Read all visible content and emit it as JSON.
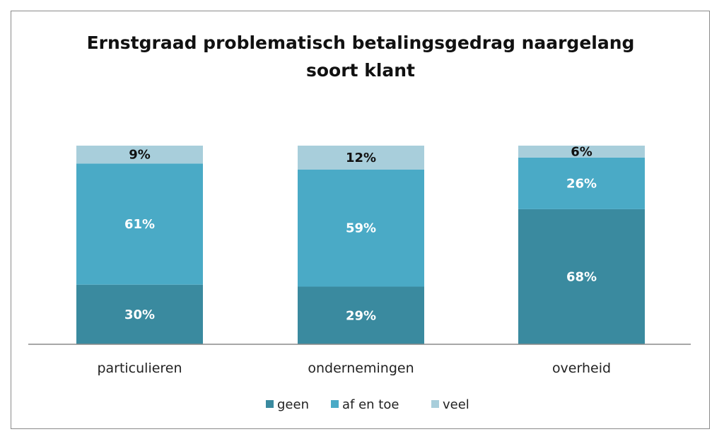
{
  "chart_data": {
    "type": "bar",
    "stacked": true,
    "title_lines": [
      "Ernstgraad problematisch betalingsgedrag naargelang",
      "soort klant"
    ],
    "categories": [
      "particulieren",
      "ondernemingen",
      "overheid"
    ],
    "series": [
      {
        "name": "geen",
        "values": [
          30,
          29,
          68
        ],
        "labels": [
          "30%",
          "29%",
          "68%"
        ],
        "color": "#3a8a9f",
        "label_color": "#ffffff"
      },
      {
        "name": "af en toe",
        "values": [
          61,
          59,
          26
        ],
        "labels": [
          "61%",
          "59%",
          "26%"
        ],
        "color": "#4aaac6",
        "label_color": "#ffffff"
      },
      {
        "name": "veel",
        "values": [
          9,
          12,
          6
        ],
        "labels": [
          "9%",
          "12%",
          "6%"
        ],
        "color": "#a8cedb",
        "label_color": "#111111"
      }
    ],
    "ylim": [
      0,
      100
    ],
    "grid": false,
    "legend_position": "bottom"
  }
}
